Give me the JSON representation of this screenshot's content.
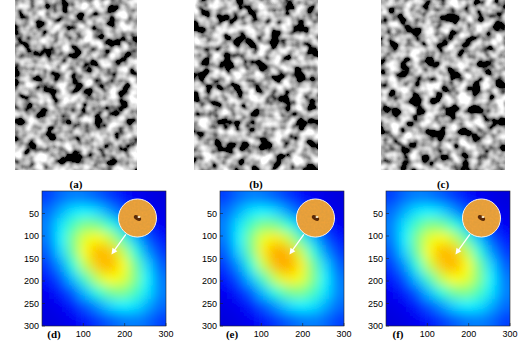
{
  "images": [
    {
      "label": "(a)"
    },
    {
      "label": "(b)"
    },
    {
      "label": "(c)"
    }
  ],
  "chart_data": [
    {
      "type": "heatmap",
      "title": "(d)",
      "xlim": [
        0,
        300
      ],
      "ylim": [
        0,
        300
      ],
      "xticks": [
        100,
        200,
        300
      ],
      "yticks": [
        50,
        100,
        150,
        200,
        250,
        300
      ],
      "zlim": [
        0,
        1.4
      ],
      "cells": [
        [
          0.26,
          0.32,
          0.35,
          0.34,
          0.3,
          0.25,
          0.2,
          0.16,
          0.14,
          0.13
        ],
        [
          0.32,
          0.41,
          0.49,
          0.51,
          0.47,
          0.38,
          0.29,
          0.21,
          0.16,
          0.14
        ],
        [
          0.35,
          0.49,
          0.62,
          0.7,
          0.68,
          0.58,
          0.44,
          0.3,
          0.21,
          0.16
        ],
        [
          0.34,
          0.51,
          0.7,
          0.84,
          0.88,
          0.79,
          0.62,
          0.44,
          0.29,
          0.2
        ],
        [
          0.3,
          0.47,
          0.68,
          0.88,
          0.98,
          0.95,
          0.79,
          0.58,
          0.38,
          0.25
        ],
        [
          0.25,
          0.38,
          0.58,
          0.79,
          0.95,
          0.98,
          0.88,
          0.68,
          0.47,
          0.3
        ],
        [
          0.2,
          0.29,
          0.44,
          0.62,
          0.79,
          0.88,
          0.84,
          0.7,
          0.51,
          0.34
        ],
        [
          0.16,
          0.21,
          0.3,
          0.44,
          0.58,
          0.68,
          0.7,
          0.62,
          0.49,
          0.35
        ],
        [
          0.14,
          0.16,
          0.21,
          0.29,
          0.38,
          0.47,
          0.51,
          0.49,
          0.41,
          0.32
        ],
        [
          0.13,
          0.14,
          0.16,
          0.2,
          0.25,
          0.3,
          0.34,
          0.35,
          0.32,
          0.26
        ]
      ]
    },
    {
      "type": "heatmap",
      "title": "(e)",
      "xlim": [
        0,
        300
      ],
      "ylim": [
        0,
        300
      ],
      "xticks": [
        100,
        200,
        300
      ],
      "yticks": [
        50,
        100,
        150,
        200,
        250,
        300
      ],
      "zlim": [
        0,
        1.4
      ],
      "cells": [
        [
          0.26,
          0.32,
          0.35,
          0.34,
          0.3,
          0.25,
          0.2,
          0.16,
          0.14,
          0.13
        ],
        [
          0.32,
          0.41,
          0.49,
          0.51,
          0.47,
          0.38,
          0.29,
          0.21,
          0.16,
          0.14
        ],
        [
          0.35,
          0.49,
          0.62,
          0.7,
          0.68,
          0.58,
          0.44,
          0.3,
          0.21,
          0.16
        ],
        [
          0.34,
          0.51,
          0.7,
          0.85,
          0.9,
          0.8,
          0.62,
          0.44,
          0.29,
          0.2
        ],
        [
          0.3,
          0.47,
          0.68,
          0.9,
          1.0,
          0.97,
          0.8,
          0.58,
          0.38,
          0.25
        ],
        [
          0.25,
          0.38,
          0.58,
          0.8,
          0.97,
          1.0,
          0.9,
          0.68,
          0.47,
          0.3
        ],
        [
          0.2,
          0.29,
          0.44,
          0.62,
          0.8,
          0.9,
          0.85,
          0.7,
          0.51,
          0.34
        ],
        [
          0.16,
          0.21,
          0.3,
          0.44,
          0.58,
          0.68,
          0.7,
          0.62,
          0.49,
          0.35
        ],
        [
          0.14,
          0.16,
          0.21,
          0.29,
          0.38,
          0.47,
          0.51,
          0.49,
          0.41,
          0.32
        ],
        [
          0.13,
          0.14,
          0.16,
          0.2,
          0.25,
          0.3,
          0.34,
          0.35,
          0.32,
          0.26
        ]
      ]
    },
    {
      "type": "heatmap",
      "title": "(f)",
      "xlim": [
        0,
        300
      ],
      "ylim": [
        0,
        300
      ],
      "xticks": [
        100,
        200,
        300
      ],
      "yticks": [
        50,
        100,
        150,
        200,
        250,
        300
      ],
      "zlim": [
        0,
        1.4
      ],
      "cells": [
        [
          0.26,
          0.32,
          0.35,
          0.34,
          0.3,
          0.25,
          0.2,
          0.16,
          0.14,
          0.13
        ],
        [
          0.32,
          0.41,
          0.49,
          0.51,
          0.47,
          0.38,
          0.29,
          0.21,
          0.16,
          0.14
        ],
        [
          0.35,
          0.49,
          0.62,
          0.7,
          0.68,
          0.58,
          0.44,
          0.3,
          0.21,
          0.16
        ],
        [
          0.34,
          0.51,
          0.7,
          0.84,
          0.88,
          0.79,
          0.62,
          0.44,
          0.29,
          0.2
        ],
        [
          0.3,
          0.47,
          0.68,
          0.88,
          0.98,
          0.95,
          0.79,
          0.58,
          0.38,
          0.25
        ],
        [
          0.25,
          0.38,
          0.58,
          0.79,
          0.95,
          0.98,
          0.88,
          0.68,
          0.47,
          0.3
        ],
        [
          0.2,
          0.29,
          0.44,
          0.62,
          0.79,
          0.88,
          0.84,
          0.7,
          0.51,
          0.34
        ],
        [
          0.16,
          0.21,
          0.3,
          0.44,
          0.58,
          0.68,
          0.7,
          0.62,
          0.49,
          0.35
        ],
        [
          0.14,
          0.16,
          0.21,
          0.29,
          0.38,
          0.47,
          0.51,
          0.49,
          0.41,
          0.32
        ],
        [
          0.13,
          0.14,
          0.16,
          0.2,
          0.25,
          0.3,
          0.34,
          0.35,
          0.32,
          0.26
        ]
      ]
    }
  ]
}
